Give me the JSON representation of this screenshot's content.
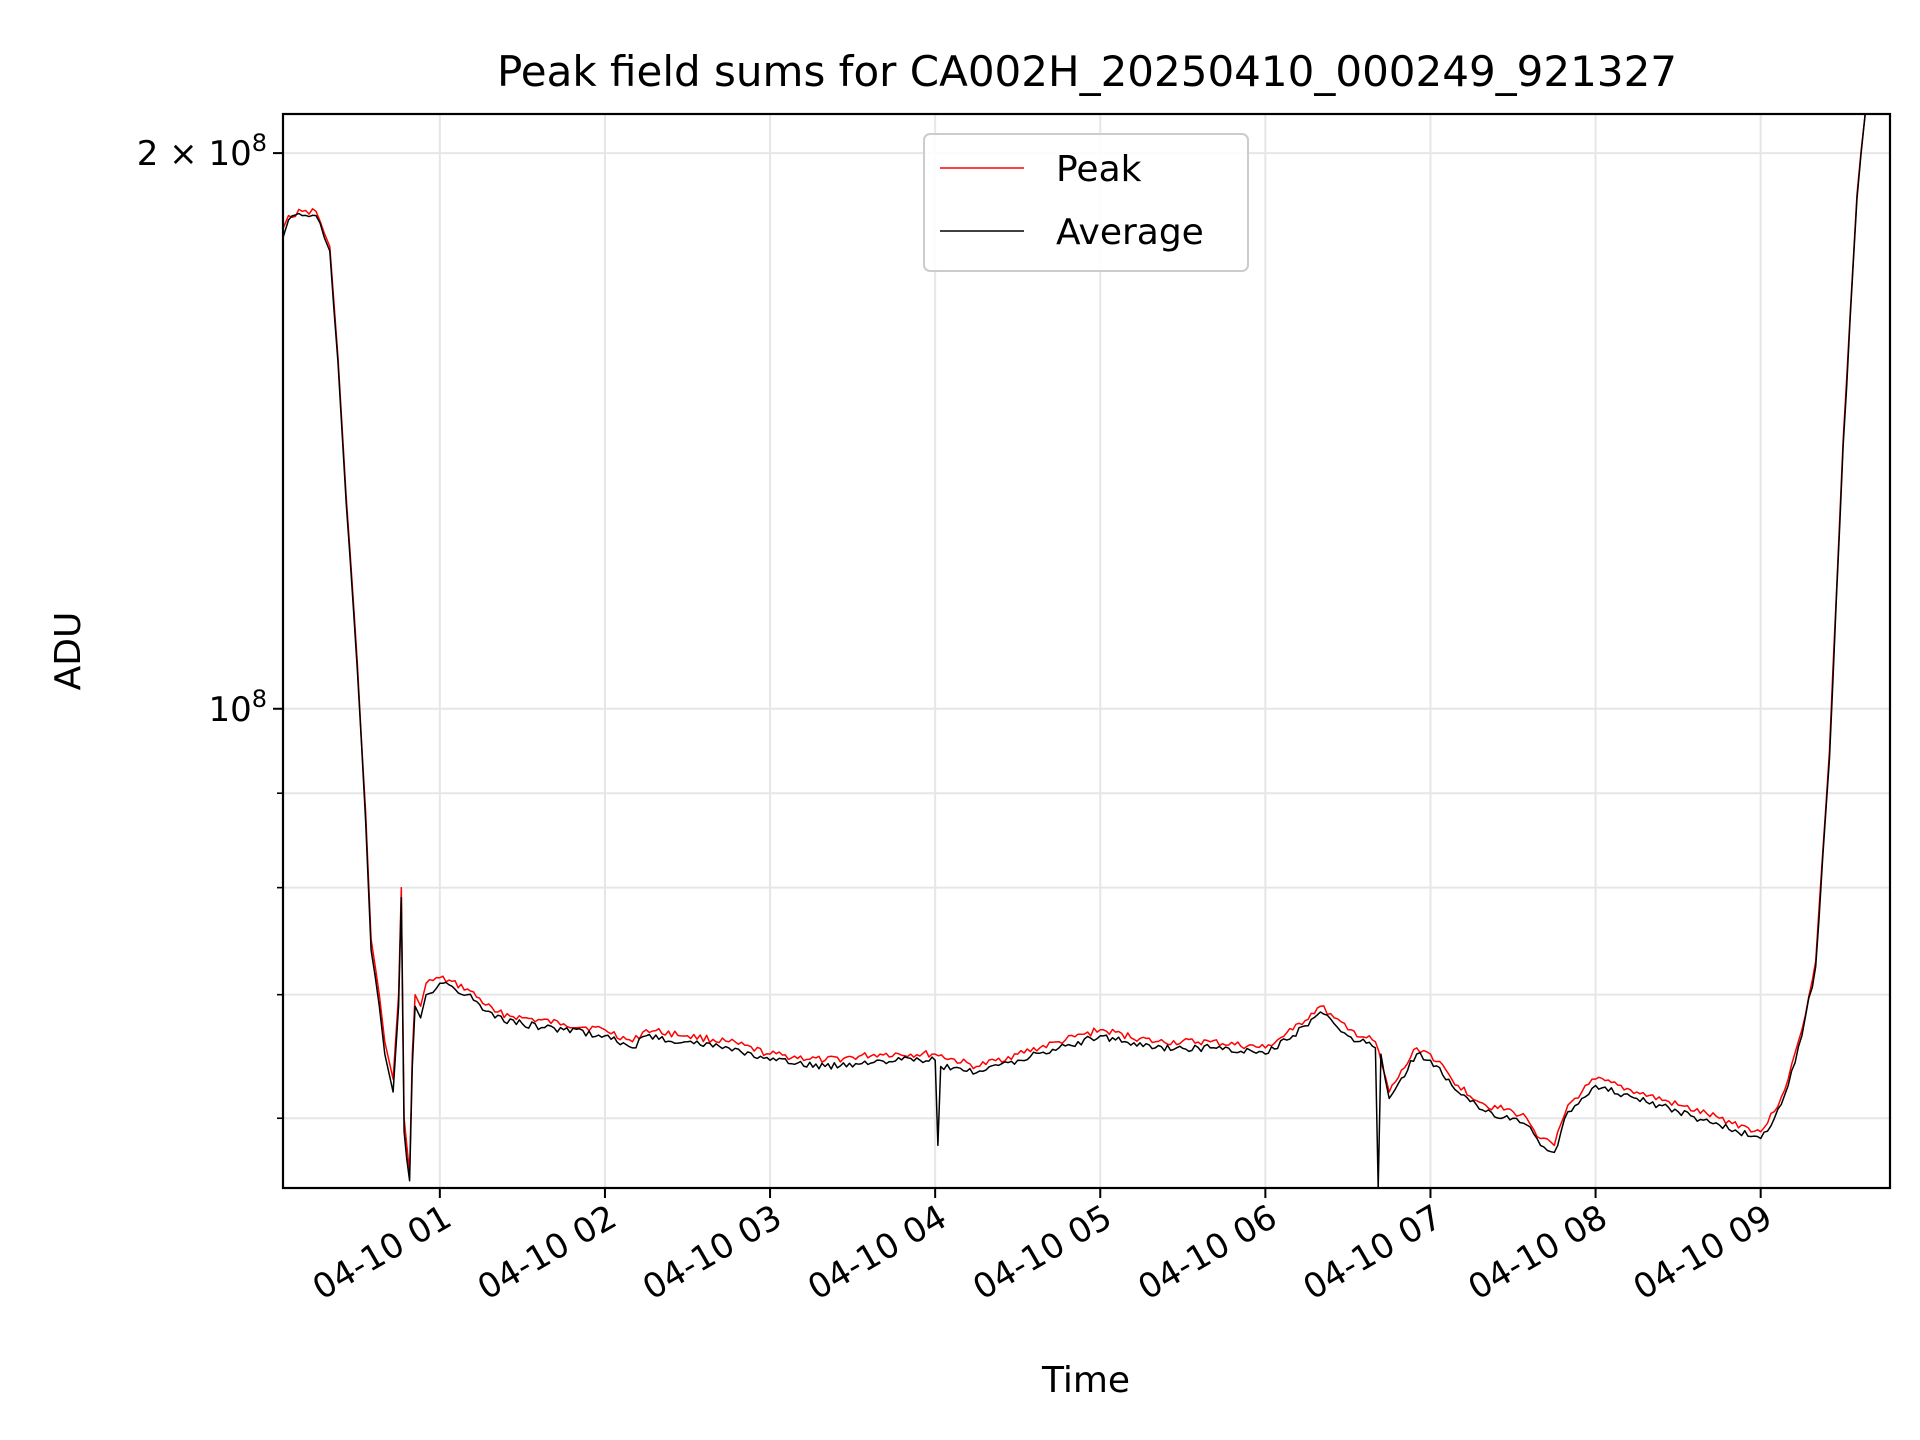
{
  "chart_data": {
    "type": "line",
    "title": "Peak field sums for CA002H_20250410_000249_921327",
    "xlabel": "Time",
    "ylabel": "ADU",
    "x_tick_labels": [
      "04-10 01",
      "04-10 02",
      "04-10 03",
      "04-10 04",
      "04-10 05",
      "04-10 06",
      "04-10 07",
      "04-10 08",
      "04-10 09"
    ],
    "x_tick_times": [
      "2025-04-10 01:00",
      "2025-04-10 02:00",
      "2025-04-10 03:00",
      "2025-04-10 04:00",
      "2025-04-10 05:00",
      "2025-04-10 06:00",
      "2025-04-10 07:00",
      "2025-04-10 08:00",
      "2025-04-10 09:00"
    ],
    "y_scale": "log",
    "y_major_ticks": [
      {
        "value": 100000000,
        "base": "10",
        "exp": "8",
        "mult": ""
      },
      {
        "value": 200000000,
        "base": "10",
        "exp": "8",
        "mult": "2 × "
      }
    ],
    "y_minor_ticks": [
      60000000,
      70000000,
      80000000,
      90000000
    ],
    "xlim": [
      "2025-04-10 00:03",
      "2025-04-10 09:47"
    ],
    "ylim": [
      55000000,
      210000000
    ],
    "grid": true,
    "legend": {
      "placement": "upper center"
    },
    "series": [
      {
        "name": "Peak",
        "color": "#ff0000",
        "x": [
          "2025-04-10 00:03",
          "2025-04-10 00:05",
          "2025-04-10 00:10",
          "2025-04-10 00:15",
          "2025-04-10 00:18",
          "2025-04-10 00:20",
          "2025-04-10 00:23",
          "2025-04-10 00:26",
          "2025-04-10 00:30",
          "2025-04-10 00:33",
          "2025-04-10 00:35",
          "2025-04-10 00:38",
          "2025-04-10 00:40",
          "2025-04-10 00:42",
          "2025-04-10 00:43",
          "2025-04-10 00:45",
          "2025-04-10 00:46",
          "2025-04-10 00:47",
          "2025-04-10 00:48",
          "2025-04-10 00:49",
          "2025-04-10 00:50",
          "2025-04-10 00:51",
          "2025-04-10 00:53",
          "2025-04-10 00:55",
          "2025-04-10 01:00",
          "2025-04-10 01:10",
          "2025-04-10 01:20",
          "2025-04-10 01:30",
          "2025-04-10 01:45",
          "2025-04-10 02:00",
          "2025-04-10 02:10",
          "2025-04-10 02:15",
          "2025-04-10 02:30",
          "2025-04-10 02:45",
          "2025-04-10 03:00",
          "2025-04-10 03:20",
          "2025-04-10 03:40",
          "2025-04-10 04:00",
          "2025-04-10 04:15",
          "2025-04-10 04:30",
          "2025-04-10 04:45",
          "2025-04-10 05:00",
          "2025-04-10 05:20",
          "2025-04-10 05:40",
          "2025-04-10 06:00",
          "2025-04-10 06:10",
          "2025-04-10 06:20",
          "2025-04-10 06:25",
          "2025-04-10 06:30",
          "2025-04-10 06:40",
          "2025-04-10 06:45",
          "2025-04-10 06:55",
          "2025-04-10 07:00",
          "2025-04-10 07:10",
          "2025-04-10 07:20",
          "2025-04-10 07:30",
          "2025-04-10 07:35",
          "2025-04-10 07:40",
          "2025-04-10 07:45",
          "2025-04-10 07:50",
          "2025-04-10 07:55",
          "2025-04-10 08:00",
          "2025-04-10 08:15",
          "2025-04-10 08:30",
          "2025-04-10 08:45",
          "2025-04-10 09:00",
          "2025-04-10 09:05",
          "2025-04-10 09:10",
          "2025-04-10 09:15",
          "2025-04-10 09:20",
          "2025-04-10 09:25",
          "2025-04-10 09:30",
          "2025-04-10 09:35",
          "2025-04-10 09:38"
        ],
        "y": [
          182000000,
          185000000,
          186000000,
          186000000,
          181000000,
          178000000,
          155000000,
          130000000,
          106000000,
          88000000,
          75000000,
          70000000,
          66000000,
          64000000,
          63000000,
          70000000,
          80000000,
          60000000,
          58000000,
          56000000,
          65000000,
          70000000,
          69000000,
          71000000,
          71500000,
          70500000,
          68500000,
          68000000,
          67500000,
          67000000,
          66000000,
          67000000,
          66500000,
          66000000,
          65000000,
          64500000,
          65000000,
          65000000,
          64000000,
          65000000,
          66000000,
          67000000,
          66000000,
          66000000,
          65500000,
          67000000,
          69000000,
          68000000,
          67000000,
          66000000,
          62000000,
          65500000,
          65000000,
          62500000,
          61000000,
          60500000,
          60000000,
          58500000,
          58000000,
          61000000,
          62000000,
          63000000,
          62000000,
          61000000,
          60000000,
          59000000,
          60500000,
          63000000,
          67000000,
          73000000,
          95000000,
          140000000,
          190000000,
          210000000
        ]
      },
      {
        "name": "Average",
        "color": "#000000",
        "x": [
          "2025-04-10 00:03",
          "2025-04-10 00:05",
          "2025-04-10 00:10",
          "2025-04-10 00:15",
          "2025-04-10 00:18",
          "2025-04-10 00:20",
          "2025-04-10 00:23",
          "2025-04-10 00:26",
          "2025-04-10 00:30",
          "2025-04-10 00:33",
          "2025-04-10 00:35",
          "2025-04-10 00:38",
          "2025-04-10 00:40",
          "2025-04-10 00:42",
          "2025-04-10 00:43",
          "2025-04-10 00:45",
          "2025-04-10 00:46",
          "2025-04-10 00:47",
          "2025-04-10 00:48",
          "2025-04-10 00:49",
          "2025-04-10 00:50",
          "2025-04-10 00:51",
          "2025-04-10 00:53",
          "2025-04-10 00:55",
          "2025-04-10 01:00",
          "2025-04-10 01:10",
          "2025-04-10 01:20",
          "2025-04-10 01:30",
          "2025-04-10 01:45",
          "2025-04-10 02:00",
          "2025-04-10 02:10",
          "2025-04-10 02:15",
          "2025-04-10 02:30",
          "2025-04-10 02:45",
          "2025-04-10 03:00",
          "2025-04-10 03:20",
          "2025-04-10 03:40",
          "2025-04-10 04:00",
          "2025-04-10 04:01",
          "2025-04-10 04:02",
          "2025-04-10 04:15",
          "2025-04-10 04:30",
          "2025-04-10 04:45",
          "2025-04-10 05:00",
          "2025-04-10 05:20",
          "2025-04-10 05:40",
          "2025-04-10 06:00",
          "2025-04-10 06:10",
          "2025-04-10 06:20",
          "2025-04-10 06:25",
          "2025-04-10 06:30",
          "2025-04-10 06:40",
          "2025-04-10 06:41",
          "2025-04-10 06:42",
          "2025-04-10 06:45",
          "2025-04-10 06:55",
          "2025-04-10 07:00",
          "2025-04-10 07:10",
          "2025-04-10 07:20",
          "2025-04-10 07:30",
          "2025-04-10 07:35",
          "2025-04-10 07:40",
          "2025-04-10 07:45",
          "2025-04-10 07:50",
          "2025-04-10 07:55",
          "2025-04-10 08:00",
          "2025-04-10 08:15",
          "2025-04-10 08:30",
          "2025-04-10 08:45",
          "2025-04-10 09:00",
          "2025-04-10 09:05",
          "2025-04-10 09:10",
          "2025-04-10 09:15",
          "2025-04-10 09:20",
          "2025-04-10 09:25",
          "2025-04-10 09:30",
          "2025-04-10 09:35",
          "2025-04-10 09:38"
        ],
        "y": [
          180000000,
          184000000,
          185000000,
          185000000,
          180000000,
          177000000,
          154000000,
          129000000,
          105000000,
          87000000,
          74000000,
          69000000,
          65000000,
          63000000,
          62000000,
          69000000,
          79000000,
          59000000,
          57000000,
          55500000,
          64000000,
          69000000,
          68000000,
          70000000,
          71000000,
          70000000,
          68000000,
          67500000,
          67000000,
          66500000,
          65500000,
          66500000,
          66000000,
          65500000,
          64500000,
          64000000,
          64500000,
          64500000,
          58000000,
          64000000,
          63500000,
          64500000,
          65500000,
          66500000,
          65500000,
          65500000,
          65000000,
          66500000,
          68500000,
          67500000,
          66500000,
          65500000,
          55000000,
          65000000,
          61500000,
          65000000,
          64500000,
          62000000,
          60500000,
          60000000,
          59500000,
          58000000,
          57500000,
          60500000,
          61500000,
          62500000,
          61500000,
          60500000,
          59500000,
          58500000,
          60000000,
          62500000,
          66500000,
          72500000,
          94000000,
          139000000,
          189000000,
          210000000
        ]
      }
    ]
  }
}
